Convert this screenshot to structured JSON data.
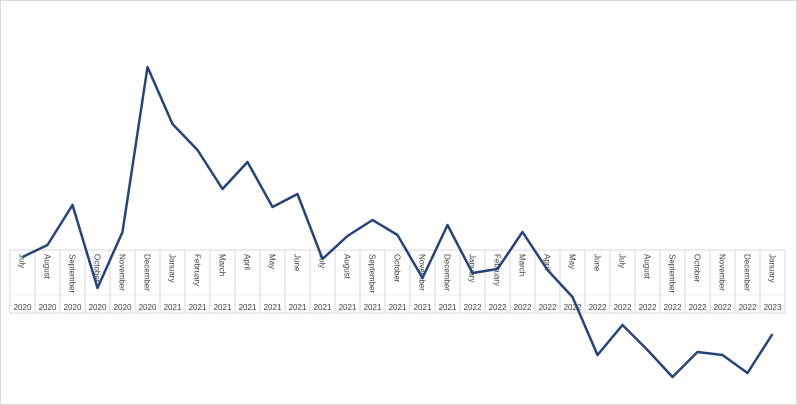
{
  "chart_data": {
    "type": "line",
    "categories": [
      "July",
      "August",
      "September",
      "October",
      "November",
      "December",
      "January",
      "February",
      "March",
      "April",
      "May",
      "June",
      "July",
      "August",
      "September",
      "October",
      "November",
      "December",
      "January",
      "February",
      "March",
      "April",
      "May",
      "June",
      "July",
      "August",
      "September",
      "October",
      "November",
      "December",
      "January"
    ],
    "category_groups": [
      "2020",
      "2020",
      "2020",
      "2020",
      "2020",
      "2020",
      "2021",
      "2021",
      "2021",
      "2021",
      "2021",
      "2021",
      "2021",
      "2021",
      "2021",
      "2021",
      "2021",
      "2021",
      "2022",
      "2022",
      "2022",
      "2022",
      "2022",
      "2022",
      "2022",
      "2022",
      "2022",
      "2022",
      "2022",
      "2022",
      "2023"
    ],
    "series": [
      {
        "color": "#264478",
        "values": [
          -0.7,
          0.5,
          4.5,
          -3.8,
          1.8,
          18.3,
          12.6,
          10,
          6.1,
          8.8,
          4.3,
          5.6,
          -0.9,
          1.4,
          3,
          1.5,
          -2.8,
          2.5,
          -2.3,
          -1.9,
          1.8,
          -2,
          -4.7,
          -10.5,
          -7.5,
          -10,
          -12.7,
          -10.2,
          -10.5,
          -12.3,
          -8.4
        ]
      }
    ],
    "ylim": [
      -15,
      24
    ]
  }
}
